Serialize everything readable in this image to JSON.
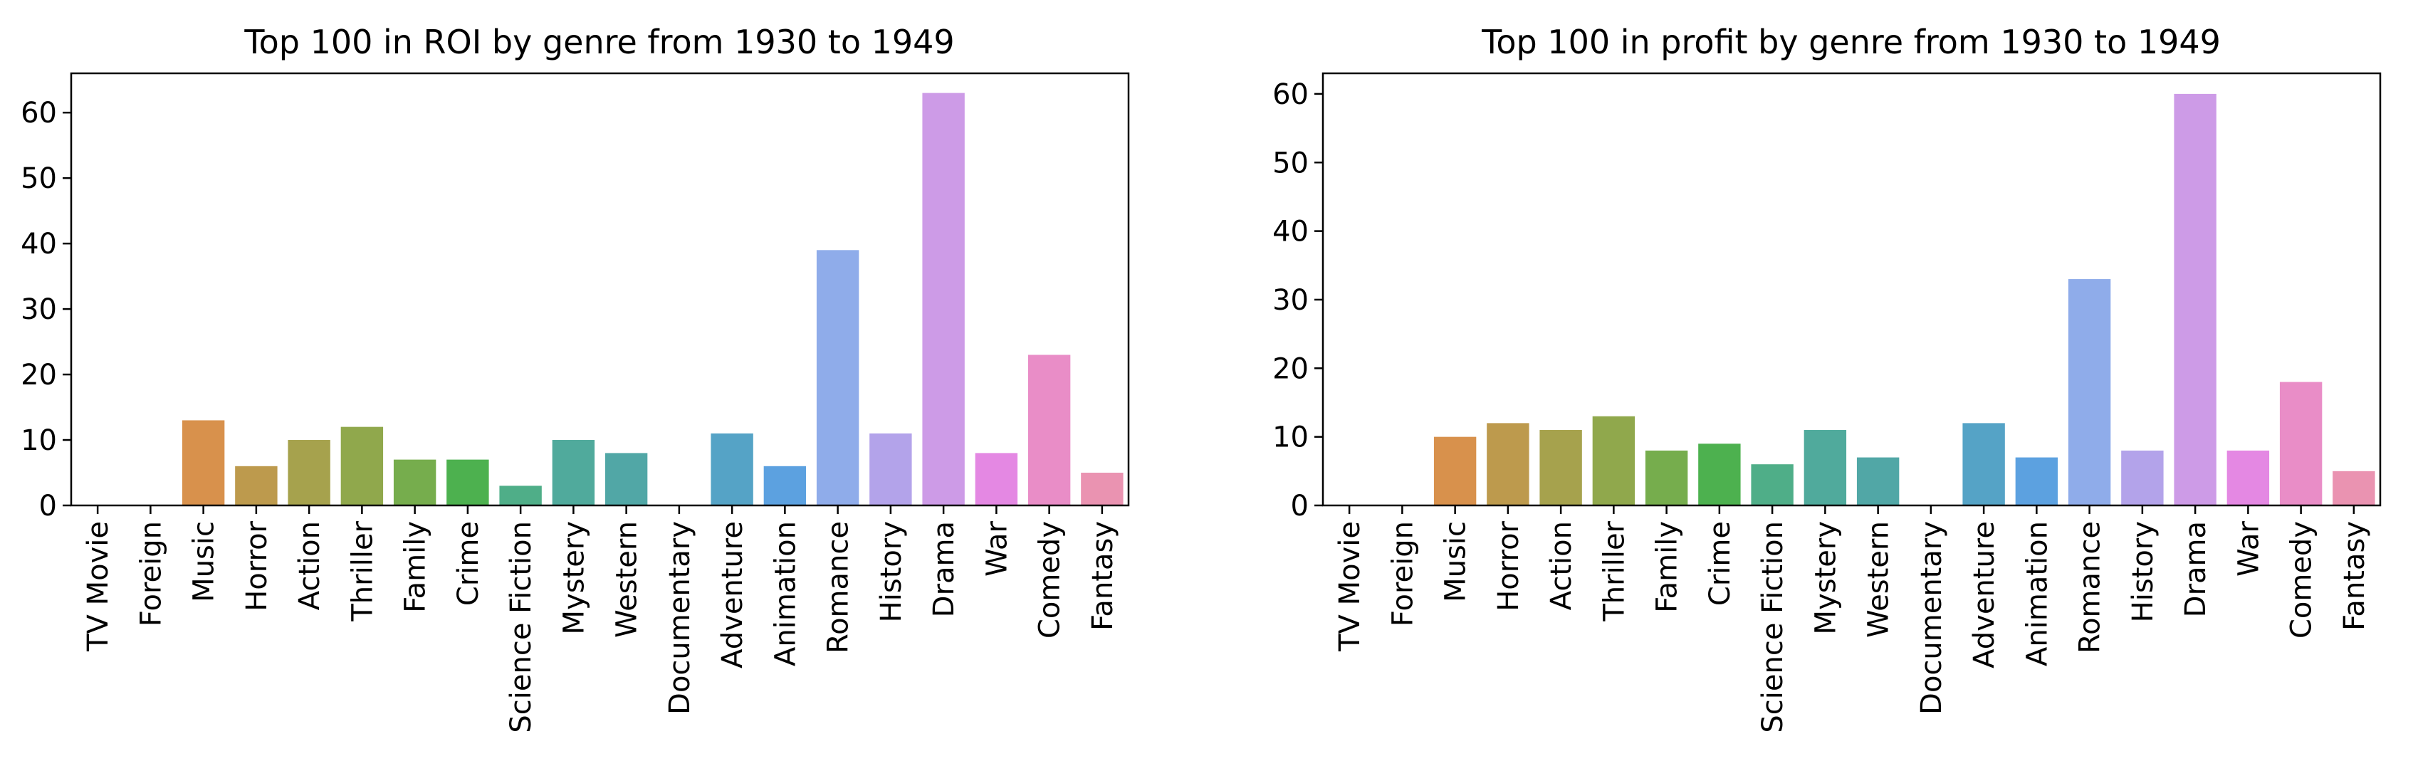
{
  "chart_data": [
    {
      "type": "bar",
      "title": "Top 100 in ROI by genre from 1930 to 1949",
      "xlabel": "",
      "ylabel": "",
      "categories": [
        "TV Movie",
        "Foreign",
        "Music",
        "Horror",
        "Action",
        "Thriller",
        "Family",
        "Crime",
        "Science Fiction",
        "Mystery",
        "Western",
        "Documentary",
        "Adventure",
        "Animation",
        "Romance",
        "History",
        "Drama",
        "War",
        "Comedy",
        "Fantasy"
      ],
      "values": [
        0,
        0,
        13,
        6,
        10,
        12,
        7,
        7,
        3,
        10,
        8,
        0,
        11,
        6,
        39,
        11,
        63,
        8,
        23,
        5
      ],
      "ylim": [
        0,
        66
      ],
      "yticks": [
        0,
        10,
        20,
        30,
        40,
        50,
        60
      ],
      "grid": false,
      "legend": "none"
    },
    {
      "type": "bar",
      "title": "Top 100 in profit by genre from 1930 to 1949",
      "xlabel": "",
      "ylabel": "",
      "categories": [
        "TV Movie",
        "Foreign",
        "Music",
        "Horror",
        "Action",
        "Thriller",
        "Family",
        "Crime",
        "Science Fiction",
        "Mystery",
        "Western",
        "Documentary",
        "Adventure",
        "Animation",
        "Romance",
        "History",
        "Drama",
        "War",
        "Comedy",
        "Fantasy"
      ],
      "values": [
        0,
        0,
        10,
        12,
        11,
        13,
        8,
        9,
        6,
        11,
        7,
        0,
        12,
        7,
        33,
        8,
        60,
        8,
        18,
        5
      ],
      "ylim": [
        0,
        63
      ],
      "yticks": [
        0,
        10,
        20,
        30,
        40,
        50,
        60
      ],
      "grid": false,
      "legend": "none"
    }
  ],
  "palette": [
    "#ea96a3",
    "#e79a7d",
    "#d8914c",
    "#bd9a4d",
    "#a6a24d",
    "#90a84c",
    "#76ad4d",
    "#4db14f",
    "#4fae88",
    "#50aa9c",
    "#51a7a6",
    "#52a4b1",
    "#55a3c6",
    "#5ca1e0",
    "#8facea",
    "#b3a3ea",
    "#cd9be7",
    "#e488e3",
    "#e98dc7",
    "#ea93b1"
  ]
}
